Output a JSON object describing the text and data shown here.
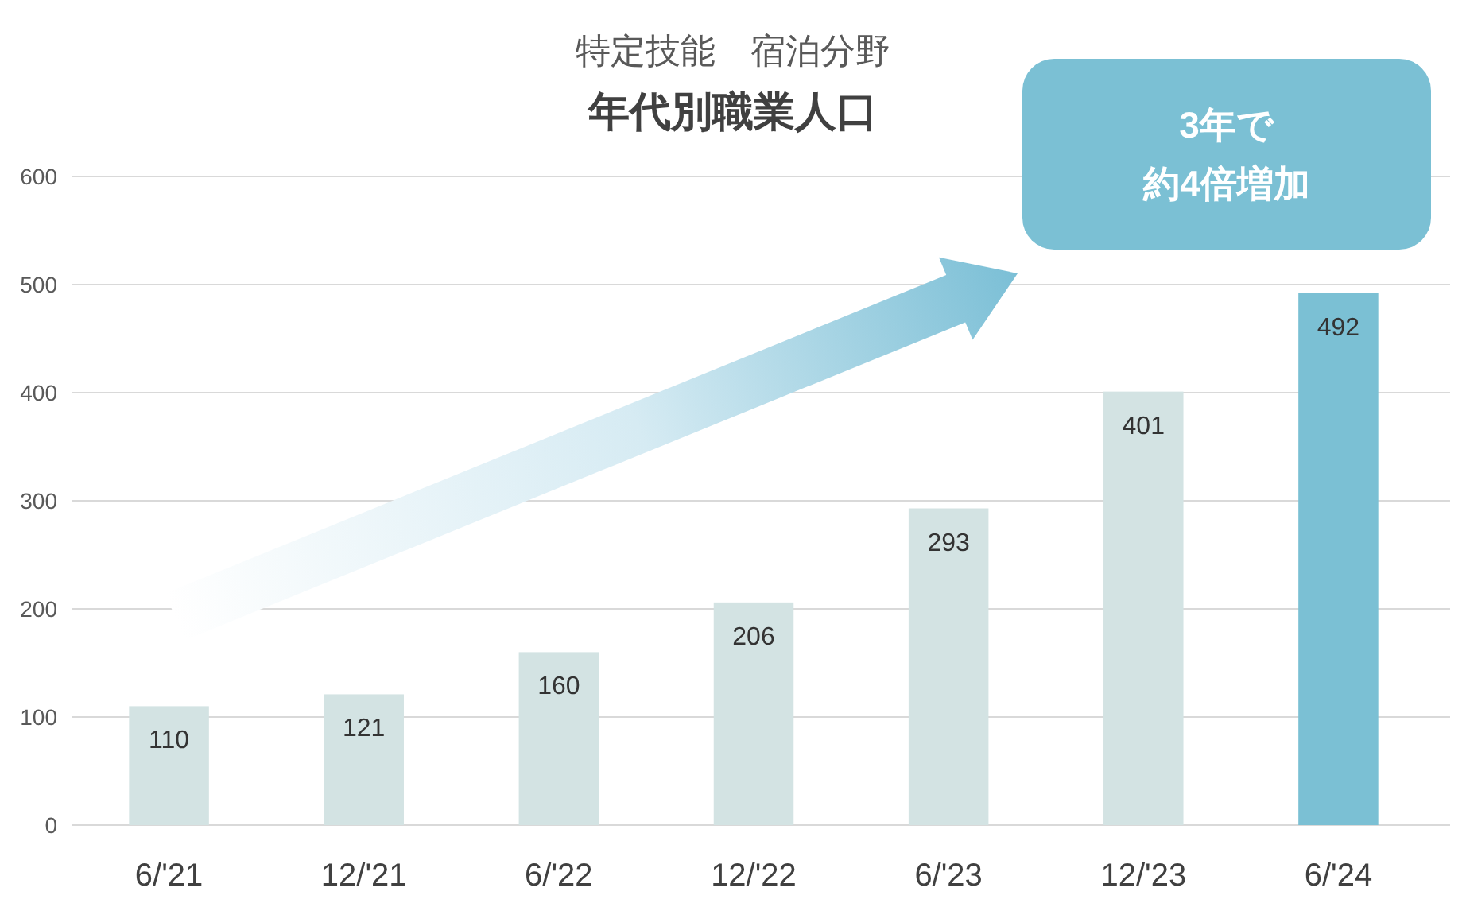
{
  "chart_data": {
    "type": "bar",
    "title": "特定技能　宿泊分野",
    "subtitle": "年代別職業人口",
    "categories": [
      "6/'21",
      "12/'21",
      "6/'22",
      "12/'22",
      "6/'23",
      "12/'23",
      "6/'24"
    ],
    "values": [
      110,
      121,
      160,
      206,
      293,
      401,
      492
    ],
    "colors": [
      "#d3e3e3",
      "#d3e3e3",
      "#d3e3e3",
      "#d3e3e3",
      "#d3e3e3",
      "#d3e3e3",
      "#7bc0d4"
    ],
    "ylim": [
      0,
      600
    ],
    "yticks": [
      0,
      100,
      200,
      300,
      400,
      500,
      600
    ],
    "grid": "y",
    "data_labels": true,
    "annotations": [
      "3年で",
      "約4倍増加"
    ]
  }
}
